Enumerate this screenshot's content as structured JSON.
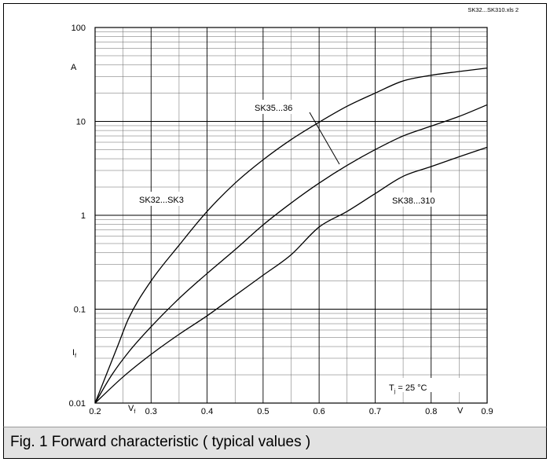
{
  "file_label": "SK32...SK310.xls 2",
  "caption": "Fig. 1 Forward characteristic ( typical values )",
  "chart_data": {
    "type": "line",
    "xlim": [
      0.2,
      0.9
    ],
    "ylim": [
      0.01,
      100
    ],
    "yscale": "log",
    "grid": true,
    "x_ticks": [
      "0.2",
      "0.3",
      "0.4",
      "0.5",
      "0.6",
      "0.7",
      "0.8",
      "0.9"
    ],
    "y_ticks": [
      "0.01",
      "0.1",
      "1",
      "10",
      "100"
    ],
    "x_symbol": "V",
    "x_symbol_sub": "f",
    "x_unit": "V",
    "y_symbol": "I",
    "y_symbol_sub": "f",
    "y_unit": "A",
    "annotation": {
      "main": "T",
      "sub": "j",
      "rest": " = 25 °C"
    },
    "series": [
      {
        "name": "SK32...SK3",
        "x": [
          0.2,
          0.22,
          0.24,
          0.26,
          0.3,
          0.35,
          0.4,
          0.45,
          0.5,
          0.55,
          0.6,
          0.65,
          0.7,
          0.75,
          0.8,
          0.85,
          0.9
        ],
        "y": [
          0.01,
          0.02,
          0.04,
          0.08,
          0.2,
          0.48,
          1.1,
          2.2,
          3.9,
          6.4,
          9.8,
          14.5,
          20,
          27,
          31,
          34,
          37
        ]
      },
      {
        "name": "SK35...36",
        "x": [
          0.2,
          0.23,
          0.26,
          0.3,
          0.35,
          0.4,
          0.45,
          0.5,
          0.55,
          0.6,
          0.65,
          0.7,
          0.75,
          0.8,
          0.85,
          0.9
        ],
        "y": [
          0.01,
          0.02,
          0.035,
          0.065,
          0.13,
          0.24,
          0.43,
          0.79,
          1.35,
          2.2,
          3.4,
          5.0,
          7.0,
          8.9,
          11.3,
          15
        ]
      },
      {
        "name": "SK38...310",
        "x": [
          0.2,
          0.25,
          0.3,
          0.35,
          0.4,
          0.45,
          0.5,
          0.55,
          0.6,
          0.65,
          0.7,
          0.75,
          0.8,
          0.85,
          0.9
        ],
        "y": [
          0.01,
          0.019,
          0.033,
          0.054,
          0.085,
          0.14,
          0.23,
          0.38,
          0.75,
          1.1,
          1.7,
          2.6,
          3.3,
          4.2,
          5.3
        ]
      }
    ],
    "series_label_texts": [
      "SK32...SK3",
      "SK35...36",
      "SK38...310"
    ]
  }
}
